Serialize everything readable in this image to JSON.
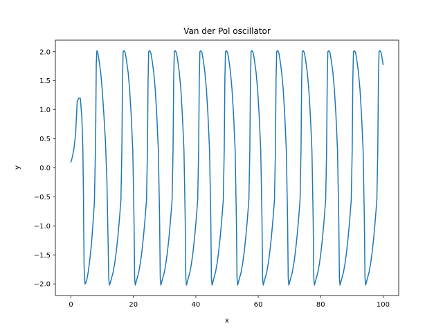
{
  "chart_data": {
    "type": "line",
    "title": "Van der Pol oscillator",
    "xlabel": "x",
    "ylabel": "y",
    "xlim": [
      -5,
      105
    ],
    "ylim": [
      -2.2,
      2.2
    ],
    "xticks": [
      0,
      20,
      40,
      60,
      80,
      100
    ],
    "xtick_labels": [
      "0",
      "20",
      "40",
      "60",
      "80",
      "100"
    ],
    "yticks": [
      -2.0,
      -1.5,
      -1.0,
      -0.5,
      0.0,
      0.5,
      1.0,
      1.5,
      2.0
    ],
    "ytick_labels": [
      "−2.0",
      "−1.5",
      "−1.0",
      "−0.5",
      "0.0",
      "0.5",
      "1.0",
      "1.5",
      "2.0"
    ],
    "grid": false,
    "series": [
      {
        "color": "#1f77b4",
        "x": [
          0.0,
          0.5,
          1.0,
          1.5,
          2.0,
          2.5,
          3.0,
          3.5,
          3.8,
          4.0,
          4.2,
          4.5,
          4.8,
          5.1,
          5.5,
          6.0,
          6.5,
          7.0,
          7.5,
          7.9,
          8.1,
          8.3,
          8.6,
          9.0,
          9.5,
          10.0,
          10.5,
          11.0,
          11.5,
          11.9,
          12.1,
          12.3,
          12.6,
          13.0
        ],
        "y": [
          0.1,
          0.2,
          0.35,
          0.6,
          1.15,
          1.2,
          1.2,
          0.85,
          0.35,
          -0.5,
          -1.7,
          -2.0,
          -1.98,
          -1.92,
          -1.8,
          -1.6,
          -1.35,
          -1.0,
          -0.6,
          0.5,
          1.8,
          2.02,
          1.98,
          1.85,
          1.65,
          1.35,
          0.95,
          0.5,
          -0.2,
          -1.3,
          -1.9,
          -2.02,
          -1.98,
          -1.9
        ]
      }
    ],
    "periodic_extension": {
      "period": 8.2,
      "first_cycle_start": 12.6,
      "cycle_x_offsets": [
        0.0,
        0.4,
        0.9,
        1.4,
        1.9,
        2.4,
        2.9,
        3.4,
        3.7,
        3.9,
        4.1,
        4.4,
        4.8,
        5.2,
        5.7,
        6.2,
        6.7,
        7.2,
        7.6,
        7.8,
        8.0
      ],
      "cycle_y": [
        -1.98,
        -1.9,
        -1.8,
        -1.65,
        -1.45,
        -1.2,
        -0.9,
        -0.55,
        0.3,
        1.5,
        2.0,
        2.02,
        1.98,
        1.85,
        1.65,
        1.35,
        0.9,
        0.3,
        -0.9,
        -1.9,
        -2.02
      ],
      "end_x": 100,
      "end_y": 1.78
    }
  }
}
